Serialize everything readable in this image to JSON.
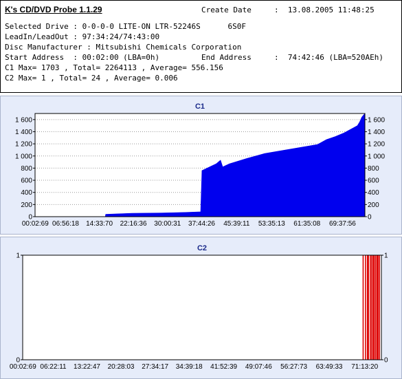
{
  "app": {
    "title": "K's CD/DVD Probe 1.1.29"
  },
  "info": {
    "create_date_label": "Create Date",
    "create_date_value": ":  13.08.2005 11:48:25",
    "selected_drive": "Selected Drive : 0-0-0-0 LITE-ON LTR-52246S      6S0F",
    "leadin": "LeadIn/LeadOut : 97:34:24/74:43:00",
    "manufacturer": "Disc Manufacturer : Mitsubishi Chemicals Corporation",
    "start_address": "Start Address  : 00:02:00 (LBA=0h)",
    "end_address_label": "End Address",
    "end_address_value": ":  74:42:46 (LBA=520AEh)",
    "c1_summary": "C1 Max= 1703 , Total= 2264113 , Average= 556.156",
    "c2_summary": "C2 Max= 1 , Total= 24 , Average= 0.006"
  },
  "chart_data": [
    {
      "type": "area",
      "title": "C1",
      "fill_color": "#0000ee",
      "ylim": [
        0,
        1700
      ],
      "yticks": [
        0,
        200,
        400,
        600,
        800,
        1000,
        1200,
        1400,
        1600
      ],
      "ytick_labels": [
        "0",
        "200",
        "400",
        "600",
        "800",
        "1 000",
        "1 200",
        "1 400",
        "1 600"
      ],
      "xlim_min": [
        0,
        74.7
      ],
      "xtick_labels": [
        "00:02:69",
        "06:56:18",
        "14:33:70",
        "22:16:36",
        "30:00:31",
        "37:44:26",
        "45:39:11",
        "53:35:13",
        "61:35:08",
        "69:37:56"
      ],
      "xtick_positions_min": [
        0.05,
        6.93,
        14.56,
        22.27,
        30.0,
        37.74,
        45.65,
        53.59,
        61.59,
        69.63
      ],
      "x": [
        0,
        12,
        15.9,
        16,
        22,
        28,
        34,
        37.5,
        37.8,
        41,
        42,
        42.5,
        44,
        48,
        52,
        56,
        60,
        64,
        66,
        68,
        70,
        71,
        72,
        73,
        73.5,
        74,
        74.7
      ],
      "y": [
        0,
        0,
        0,
        40,
        55,
        60,
        70,
        80,
        760,
        870,
        930,
        820,
        870,
        960,
        1040,
        1090,
        1140,
        1190,
        1270,
        1320,
        1380,
        1420,
        1460,
        1500,
        1560,
        1640,
        1700
      ],
      "grid": true
    },
    {
      "type": "bar",
      "title": "C2",
      "bar_color": "#dd0000",
      "ylim": [
        0,
        1
      ],
      "yticks": [
        0,
        1
      ],
      "ytick_labels": [
        "0",
        "1"
      ],
      "xlim_min": [
        0,
        74.7
      ],
      "xtick_labels": [
        "00:02:69",
        "06:22:11",
        "13:22:47",
        "20:28:03",
        "27:34:17",
        "34:39:18",
        "41:52:39",
        "49:07:46",
        "56:27:73",
        "63:49:33",
        "71:13:20"
      ],
      "xtick_positions_min": [
        0.05,
        6.37,
        13.38,
        20.47,
        27.57,
        34.66,
        41.88,
        49.13,
        56.47,
        63.83,
        71.22
      ],
      "x": [
        70.9,
        71.4,
        71.8,
        72.0,
        72.4,
        72.7,
        73.0,
        73.2,
        73.5,
        73.8,
        74.0,
        74.3
      ],
      "y": [
        1,
        1,
        1,
        1,
        1,
        1,
        1,
        1,
        1,
        1,
        1,
        1
      ],
      "grid": true
    }
  ]
}
